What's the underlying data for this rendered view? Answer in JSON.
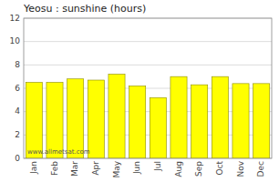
{
  "chart_data": {
    "type": "bar",
    "title": "Yeosu : sunshine (hours)",
    "categories": [
      "Jan",
      "Feb",
      "Mar",
      "Apr",
      "May",
      "Jun",
      "Jul",
      "Aug",
      "Sep",
      "Oct",
      "Nov",
      "Dec"
    ],
    "values": [
      6.5,
      6.5,
      6.8,
      6.7,
      7.2,
      6.2,
      5.2,
      7.0,
      6.3,
      7.0,
      6.4,
      6.4
    ],
    "color": "#ffff00",
    "ylim": [
      0,
      12
    ],
    "yticks": [
      0,
      2,
      4,
      6,
      8,
      10,
      12
    ],
    "grid": true,
    "annotations": [
      "www.allmetsat.com"
    ]
  }
}
